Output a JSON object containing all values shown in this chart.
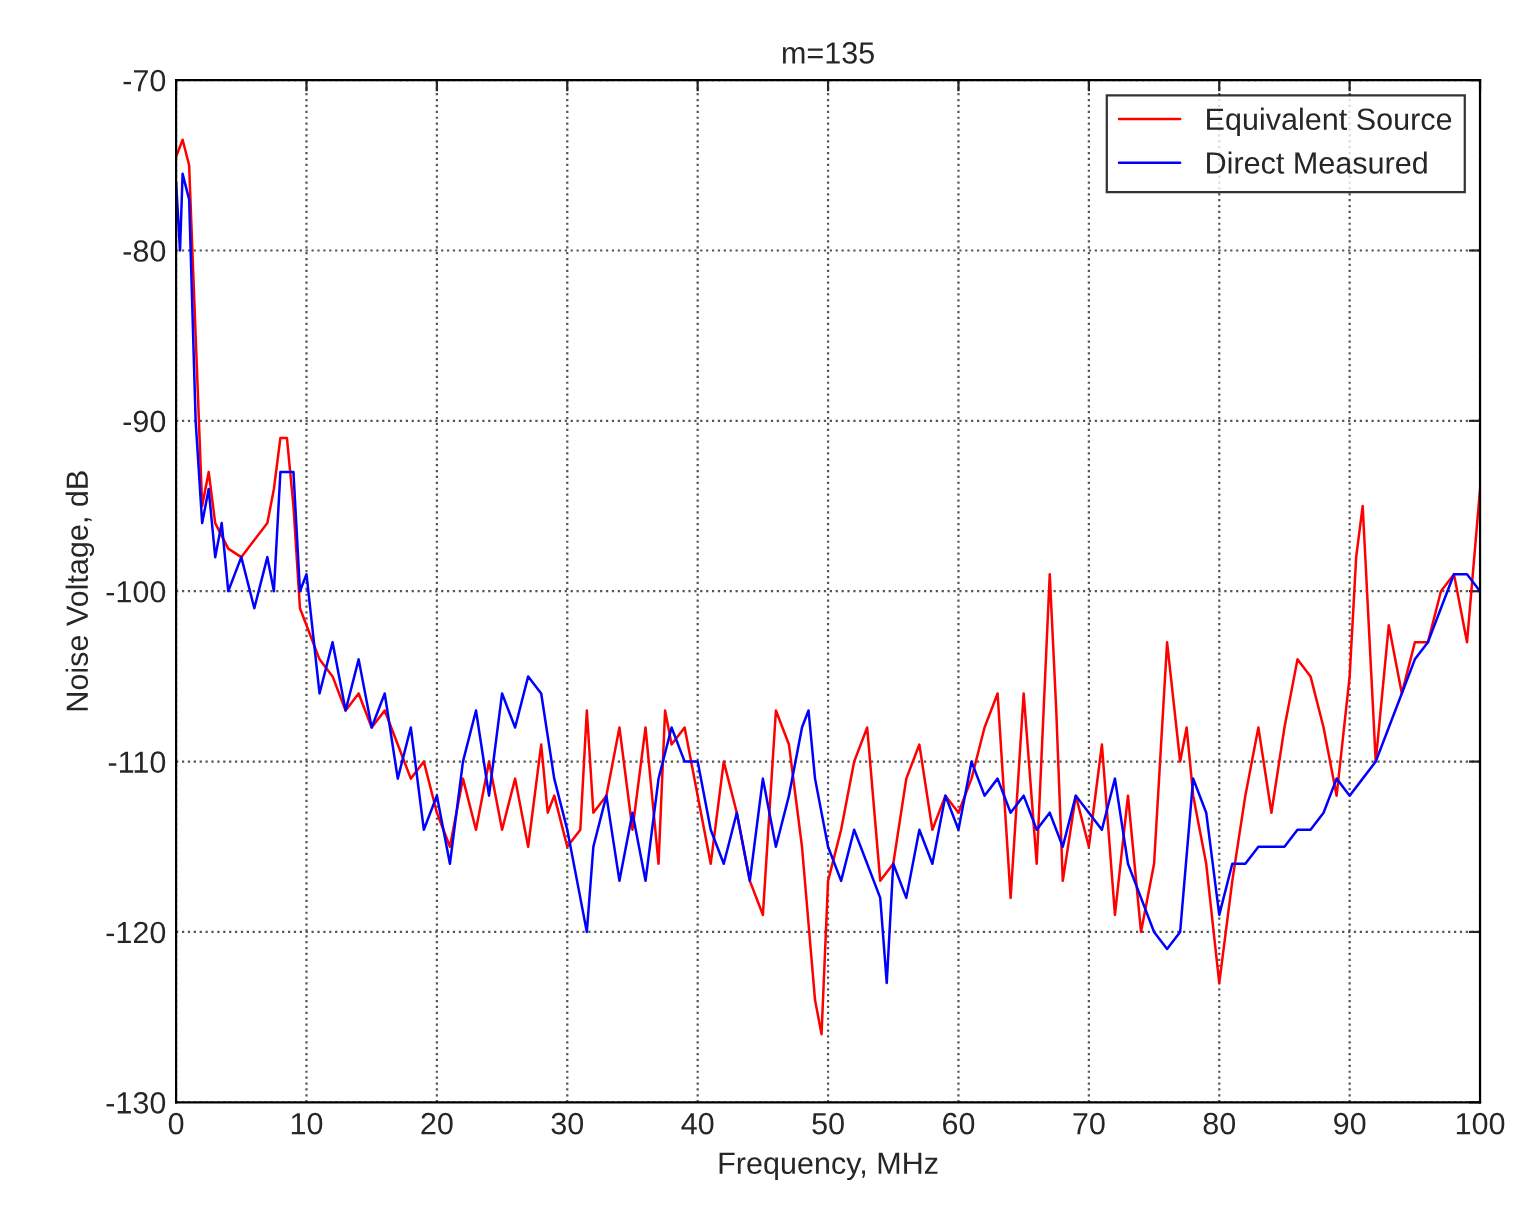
{
  "chart_data": {
    "type": "line",
    "title": "m=135",
    "xlabel": "Frequency, MHz",
    "ylabel": "Noise Voltage, dB",
    "xlim": [
      0,
      100
    ],
    "ylim": [
      -130,
      -70
    ],
    "xticks": [
      0,
      10,
      20,
      30,
      40,
      50,
      60,
      70,
      80,
      90,
      100
    ],
    "yticks": [
      -130,
      -120,
      -110,
      -100,
      -90,
      -80,
      -70
    ],
    "grid": true,
    "legend": "top right",
    "line_style": "solid",
    "marker": "none",
    "series": [
      {
        "name": "Equivalent Source",
        "color": "#ff0000",
        "x": [
          0,
          0.5,
          1,
          1.5,
          2,
          2.5,
          3,
          4,
          5,
          6,
          7,
          7.5,
          8,
          8.5,
          9,
          9.5,
          10,
          11,
          12,
          13,
          14,
          15,
          16,
          17,
          18,
          19,
          20,
          21,
          22,
          23,
          24,
          25,
          26,
          27,
          28,
          28.5,
          29,
          30,
          31,
          31.5,
          32,
          33,
          34,
          35,
          36,
          37,
          37.5,
          38,
          39,
          40,
          41,
          42,
          43,
          44,
          45,
          46,
          47,
          48,
          49,
          49.5,
          50,
          51,
          52,
          53,
          54,
          55,
          56,
          57,
          58,
          59,
          60,
          61,
          62,
          63,
          64,
          65,
          66,
          67,
          67.5,
          68,
          69,
          70,
          71,
          72,
          73,
          74,
          75,
          76,
          77,
          77.5,
          78,
          79,
          80,
          81,
          82,
          83,
          84,
          85,
          86,
          87,
          88,
          89,
          90,
          90.5,
          91,
          92,
          93,
          94,
          95,
          96,
          97,
          98,
          99,
          100
        ],
        "values": [
          -74.5,
          -73.5,
          -75,
          -85,
          -95,
          -93,
          -96,
          -97.5,
          -98,
          -97,
          -96,
          -94,
          -91,
          -91,
          -95,
          -101,
          -102,
          -104,
          -105,
          -107,
          -106,
          -108,
          -107,
          -109,
          -111,
          -110,
          -113,
          -115,
          -111,
          -114,
          -110,
          -114,
          -111,
          -115,
          -109,
          -113,
          -112,
          -115,
          -114,
          -107,
          -113,
          -112,
          -108,
          -114,
          -108,
          -116,
          -107,
          -109,
          -108,
          -112,
          -116,
          -110,
          -113,
          -117,
          -119,
          -107,
          -109,
          -115,
          -124,
          -126,
          -117,
          -114,
          -110,
          -108,
          -117,
          -116,
          -111,
          -109,
          -114,
          -112,
          -113,
          -111,
          -108,
          -106,
          -118,
          -106,
          -116,
          -99,
          -107,
          -117,
          -112,
          -115,
          -109,
          -119,
          -112,
          -120,
          -116,
          -103,
          -110,
          -108,
          -112,
          -116,
          -123,
          -117,
          -112,
          -108,
          -113,
          -108,
          -104,
          -105,
          -108,
          -112,
          -105,
          -98,
          -95,
          -110,
          -102,
          -106,
          -103,
          -103,
          -100,
          -99,
          -103,
          -94
        ]
      },
      {
        "name": "Direct Measured",
        "color": "#0000ff",
        "x": [
          0,
          0.3,
          0.5,
          1,
          1.5,
          2,
          2.5,
          3,
          3.5,
          4,
          5,
          6,
          7,
          7.5,
          8,
          9,
          9.5,
          10,
          11,
          12,
          13,
          14,
          15,
          16,
          17,
          18,
          19,
          20,
          21,
          22,
          23,
          24,
          25,
          26,
          27,
          28,
          29,
          30,
          31,
          31.5,
          32,
          33,
          34,
          35,
          36,
          37,
          38,
          39,
          40,
          41,
          42,
          43,
          44,
          45,
          46,
          47,
          48,
          48.5,
          49,
          50,
          51,
          52,
          53,
          54,
          54.5,
          55,
          56,
          57,
          58,
          59,
          60,
          61,
          62,
          63,
          64,
          65,
          66,
          67,
          68,
          69,
          70,
          71,
          72,
          73,
          74,
          75,
          76,
          77,
          78,
          79,
          80,
          81,
          82,
          83,
          84,
          85,
          86,
          87,
          88,
          89,
          90,
          91,
          92,
          93,
          94,
          95,
          96,
          97,
          98,
          99,
          100
        ],
        "values": [
          -76,
          -80,
          -75.5,
          -77,
          -90,
          -96,
          -94,
          -98,
          -96,
          -100,
          -98,
          -101,
          -98,
          -100,
          -93,
          -93,
          -100,
          -99,
          -106,
          -103,
          -107,
          -104,
          -108,
          -106,
          -111,
          -108,
          -114,
          -112,
          -116,
          -110,
          -107,
          -112,
          -106,
          -108,
          -105,
          -106,
          -111,
          -114,
          -118,
          -120,
          -115,
          -112,
          -117,
          -113,
          -117,
          -111,
          -108,
          -110,
          -110,
          -114,
          -116,
          -113,
          -117,
          -111,
          -115,
          -112,
          -108,
          -107,
          -111,
          -115,
          -117,
          -114,
          -116,
          -118,
          -123,
          -116,
          -118,
          -114,
          -116,
          -112,
          -114,
          -110,
          -112,
          -111,
          -113,
          -112,
          -114,
          -113,
          -115,
          -112,
          -113,
          -114,
          -111,
          -116,
          -118,
          -120,
          -121,
          -120,
          -111,
          -113,
          -119,
          -116,
          -116,
          -115,
          -115,
          -115,
          -114,
          -114,
          -113,
          -111,
          -112,
          -111,
          -110,
          -108,
          -106,
          -104,
          -103,
          -101,
          -99,
          -99,
          -100
        ]
      }
    ]
  }
}
